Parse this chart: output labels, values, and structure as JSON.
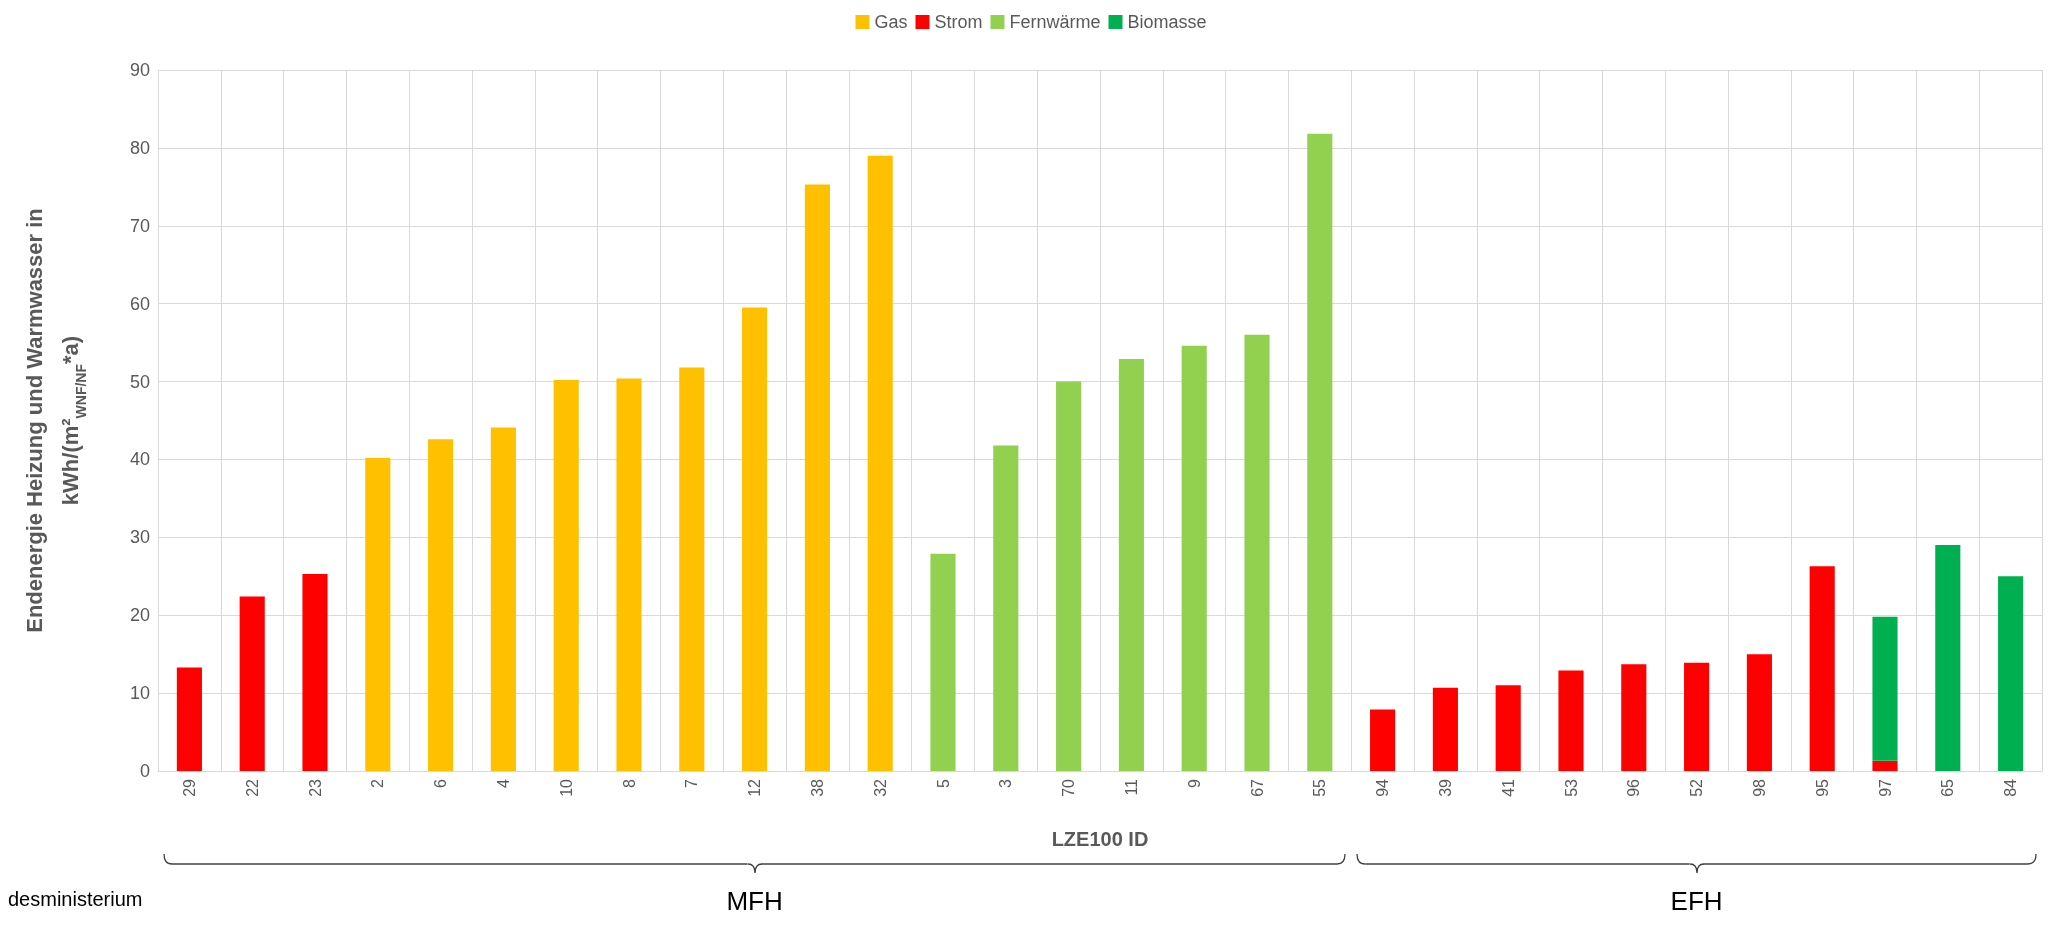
{
  "chart_data": {
    "type": "bar",
    "stacked": true,
    "xlabel": "LZE100 ID",
    "ylabel": "Endenergie Heizung und Warmwasser in kWh/(m²$_{WNF/NF}$*a)",
    "categories": [
      "29",
      "22",
      "23",
      "2",
      "6",
      "4",
      "10",
      "8",
      "7",
      "12",
      "38",
      "32",
      "5",
      "3",
      "70",
      "11",
      "9",
      "67",
      "55",
      "94",
      "39",
      "41",
      "53",
      "96",
      "52",
      "98",
      "95",
      "97",
      "65",
      "84"
    ],
    "series": [
      {
        "name": "Gas",
        "color": "#ffc000",
        "values": [
          null,
          null,
          null,
          40.2,
          42.6,
          44.1,
          50.2,
          50.4,
          51.8,
          59.5,
          75.3,
          79.0,
          null,
          null,
          null,
          null,
          null,
          null,
          null,
          null,
          null,
          null,
          null,
          null,
          null,
          null,
          null,
          null,
          null,
          null
        ]
      },
      {
        "name": "Strom",
        "color": "#ff0000",
        "values": [
          13.3,
          22.4,
          25.3,
          null,
          null,
          null,
          null,
          null,
          null,
          null,
          null,
          null,
          null,
          null,
          null,
          null,
          null,
          null,
          null,
          7.9,
          10.7,
          11.0,
          12.9,
          13.7,
          13.9,
          15.0,
          26.3,
          1.3,
          null,
          null
        ]
      },
      {
        "name": "Fernwärme",
        "color": "#92d050",
        "values": [
          null,
          null,
          null,
          null,
          null,
          null,
          null,
          null,
          null,
          null,
          null,
          null,
          27.9,
          41.8,
          50.0,
          52.9,
          54.6,
          56.0,
          81.8,
          null,
          null,
          null,
          null,
          null,
          null,
          null,
          null,
          null,
          null,
          null
        ]
      },
      {
        "name": "Biomasse",
        "color": "#00b050",
        "values": [
          null,
          null,
          null,
          null,
          null,
          null,
          null,
          null,
          null,
          null,
          null,
          null,
          null,
          null,
          null,
          null,
          null,
          null,
          null,
          null,
          null,
          null,
          null,
          null,
          null,
          null,
          null,
          18.5,
          29.0,
          25.0
        ]
      }
    ],
    "ylim": [
      0,
      90
    ],
    "yticks": [
      0,
      10,
      20,
      30,
      40,
      50,
      60,
      70,
      80,
      90
    ],
    "grid": true,
    "legend": "top",
    "annotations": [
      "MFH",
      "EFH",
      "desministerium"
    ]
  }
}
